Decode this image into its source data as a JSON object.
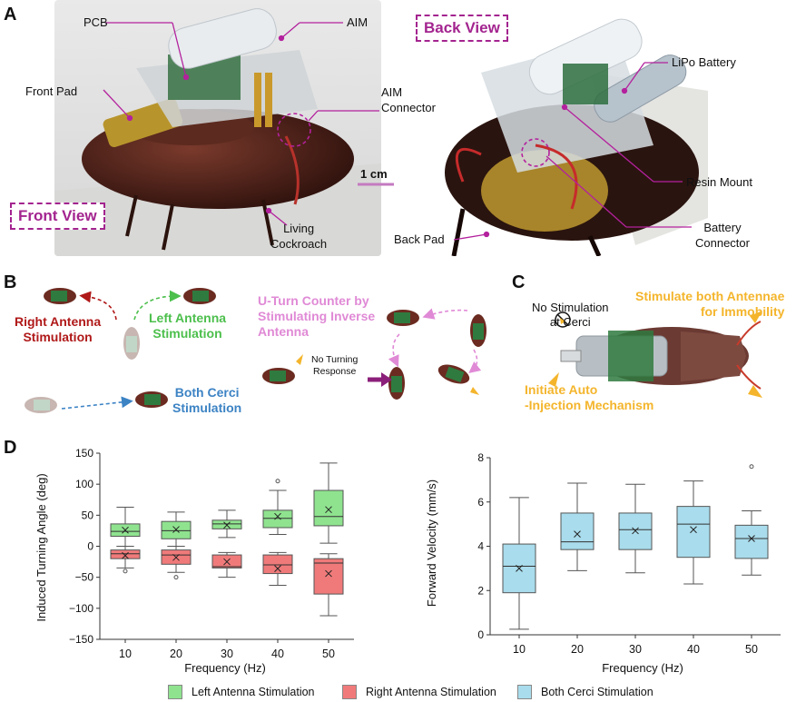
{
  "panels": {
    "a": "A",
    "b": "B",
    "c": "C",
    "d": "D"
  },
  "panel_a": {
    "pcb": "PCB",
    "aim": "AIM",
    "front_pad": "Front Pad",
    "aim_connector_1": "AIM",
    "aim_connector_2": "Connector",
    "scale": "1 cm",
    "front_view": "Front View",
    "back_view": "Back View",
    "living_1": "Living",
    "living_2": "Cockroach",
    "lipo": "LiPo Battery",
    "resin_mount": "Resin Mount",
    "battery_1": "Battery",
    "battery_2": "Connector",
    "back_pad": "Back Pad"
  },
  "panel_b": {
    "right_antenna_1": "Right Antenna",
    "right_antenna_2": "Stimulation",
    "left_antenna_1": "Left Antenna",
    "left_antenna_2": "Stimulation",
    "uturn_1": "U-Turn Counter by",
    "uturn_2": "Stimulating Inverse",
    "uturn_3": "Antenna",
    "no_turn_1": "No Turning",
    "no_turn_2": "Response",
    "cerci_1": "Both Cerci",
    "cerci_2": "Stimulation"
  },
  "panel_c": {
    "no_stim_1": "No Stimulation",
    "no_stim_2": "at Cerci",
    "both_antennae_1": "Stimulate both Antennae",
    "both_antennae_2": "for Immobility",
    "auto_1": "Initiate Auto",
    "auto_2": "-Injection Mechanism"
  },
  "colors": {
    "green": "#8fe38f",
    "red": "#f07a7a",
    "blue": "#a9dcec",
    "purple": "#a3248f",
    "dark_red": "#b01919",
    "b_green": "#4cbf4c",
    "b_blue": "#3c83c4",
    "b_pink": "#e08ad6",
    "orange": "#f4b52c"
  },
  "chart_data": [
    {
      "type": "box",
      "xlabel": "Frequency (Hz)",
      "ylabel": "Induced Turning Angle (deg)",
      "categories": [
        "10",
        "20",
        "30",
        "40",
        "50"
      ],
      "ylim": [
        -150,
        150
      ],
      "yticks": [
        "150",
        "100",
        "50",
        "0",
        "−50",
        "−100",
        "−150"
      ],
      "ytick_values": [
        150,
        100,
        50,
        0,
        -50,
        -100,
        -150
      ],
      "series": [
        {
          "name": "Left Antenna Stimulation",
          "color": "#8fe38f",
          "boxes": [
            {
              "min": 0,
              "q1": 16,
              "median": 24,
              "q3": 36,
              "max": 63,
              "mean": 26,
              "outliers": []
            },
            {
              "min": 0,
              "q1": 12,
              "median": 25,
              "q3": 40,
              "max": 55,
              "mean": 27,
              "outliers": []
            },
            {
              "min": 14,
              "q1": 28,
              "median": 36,
              "q3": 42,
              "max": 58,
              "mean": 34,
              "outliers": []
            },
            {
              "min": 19,
              "q1": 30,
              "median": 45,
              "q3": 58,
              "max": 90,
              "mean": 48,
              "outliers": [
                105
              ]
            },
            {
              "min": 5,
              "q1": 33,
              "median": 48,
              "q3": 90,
              "max": 134,
              "mean": 59,
              "outliers": []
            }
          ]
        },
        {
          "name": "Right Antenna Stimulation",
          "color": "#f07a7a",
          "boxes": [
            {
              "min": -35,
              "q1": -20,
              "median": -12,
              "q3": -6,
              "max": 0,
              "mean": -15,
              "outliers": [
                -40
              ]
            },
            {
              "min": -42,
              "q1": -29,
              "median": -14,
              "q3": -6,
              "max": 0,
              "mean": -18,
              "outliers": [
                -50
              ]
            },
            {
              "min": -50,
              "q1": -35,
              "median": -33,
              "q3": -14,
              "max": -10,
              "mean": -25,
              "outliers": []
            },
            {
              "min": -63,
              "q1": -44,
              "median": -30,
              "q3": -14,
              "max": -10,
              "mean": -36,
              "outliers": []
            },
            {
              "min": -112,
              "q1": -77,
              "median": -27,
              "q3": -20,
              "max": -12,
              "mean": -44,
              "outliers": []
            }
          ]
        }
      ]
    },
    {
      "type": "box",
      "xlabel": "Frequency (Hz)",
      "ylabel": "Forward Velocity (mm/s)",
      "categories": [
        "10",
        "20",
        "30",
        "40",
        "50"
      ],
      "ylim": [
        0,
        8
      ],
      "yticks": [
        "8",
        "6",
        "4",
        "2",
        "0"
      ],
      "ytick_values": [
        8,
        6,
        4,
        2,
        0
      ],
      "series": [
        {
          "name": "Both Cerci Stimulation",
          "color": "#a9dcec",
          "boxes": [
            {
              "min": 0.25,
              "q1": 1.9,
              "median": 3.1,
              "q3": 4.1,
              "max": 6.2,
              "mean": 3.0,
              "outliers": []
            },
            {
              "min": 2.9,
              "q1": 3.85,
              "median": 4.2,
              "q3": 5.5,
              "max": 6.85,
              "mean": 4.55,
              "outliers": []
            },
            {
              "min": 2.8,
              "q1": 3.85,
              "median": 4.75,
              "q3": 5.5,
              "max": 6.8,
              "mean": 4.7,
              "outliers": []
            },
            {
              "min": 2.3,
              "q1": 3.5,
              "median": 5.0,
              "q3": 5.8,
              "max": 6.95,
              "mean": 4.75,
              "outliers": []
            },
            {
              "min": 2.7,
              "q1": 3.45,
              "median": 4.35,
              "q3": 4.95,
              "max": 5.6,
              "mean": 4.35,
              "outliers": [
                7.6
              ]
            }
          ]
        }
      ]
    }
  ],
  "legend": [
    {
      "label": "Left Antenna Stimulation",
      "color": "#8fe38f"
    },
    {
      "label": "Right Antenna Stimulation",
      "color": "#f07a7a"
    },
    {
      "label": "Both Cerci Stimulation",
      "color": "#a9dcec"
    }
  ]
}
